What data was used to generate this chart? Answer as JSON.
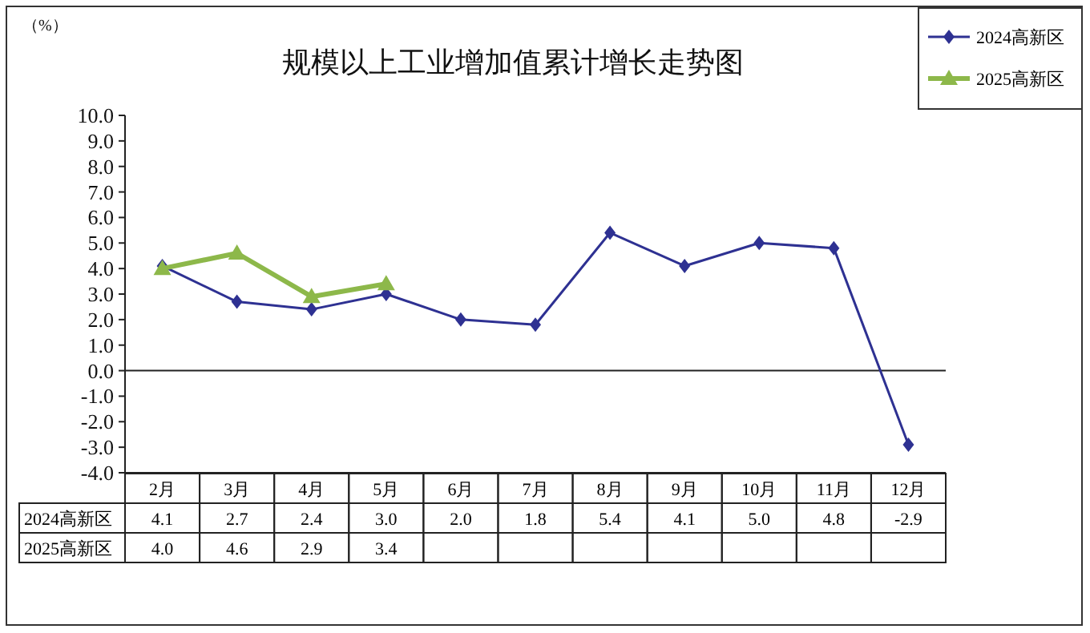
{
  "chart_data": {
    "type": "line",
    "title": "规模以上工业增加值累计增长走势图",
    "ylabel": "（%）",
    "categories": [
      "2月",
      "3月",
      "4月",
      "5月",
      "6月",
      "7月",
      "8月",
      "9月",
      "10月",
      "11月",
      "12月"
    ],
    "series": [
      {
        "name": "2024高新区",
        "color": "#2e3192",
        "marker": "diamond",
        "values": [
          4.1,
          2.7,
          2.4,
          3.0,
          2.0,
          1.8,
          5.4,
          4.1,
          5.0,
          4.8,
          -2.9
        ],
        "value_labels": [
          "4.1",
          "2.7",
          "2.4",
          "3.0",
          "2.0",
          "1.8",
          "5.4",
          "4.1",
          "5.0",
          "4.8",
          "-2.9"
        ]
      },
      {
        "name": "2025高新区",
        "color": "#8db84a",
        "marker": "triangle",
        "values": [
          4.0,
          4.6,
          2.9,
          3.4,
          null,
          null,
          null,
          null,
          null,
          null,
          null
        ],
        "value_labels": [
          "4.0",
          "4.6",
          "2.9",
          "3.4",
          null,
          null,
          null,
          null,
          null,
          null,
          null
        ]
      }
    ],
    "ylim": [
      -4,
      10
    ],
    "yticks": [
      {
        "value": -4,
        "label": "-4.0"
      },
      {
        "value": -3,
        "label": "-3.0"
      },
      {
        "value": -2,
        "label": "-2.0"
      },
      {
        "value": -1,
        "label": "-1.0"
      },
      {
        "value": 0,
        "label": "0.0"
      },
      {
        "value": 1,
        "label": "1.0"
      },
      {
        "value": 2,
        "label": "2.0"
      },
      {
        "value": 3,
        "label": "3.0"
      },
      {
        "value": 4,
        "label": "4.0"
      },
      {
        "value": 5,
        "label": "5.0"
      },
      {
        "value": 6,
        "label": "6.0"
      },
      {
        "value": 7,
        "label": "7.0"
      },
      {
        "value": 8,
        "label": "8.0"
      },
      {
        "value": 9,
        "label": "9.0"
      },
      {
        "value": 10,
        "label": "10.0"
      }
    ],
    "ref_lines": [
      {
        "axis": "y",
        "value": 0
      }
    ],
    "grid": false,
    "legend": "top right"
  }
}
